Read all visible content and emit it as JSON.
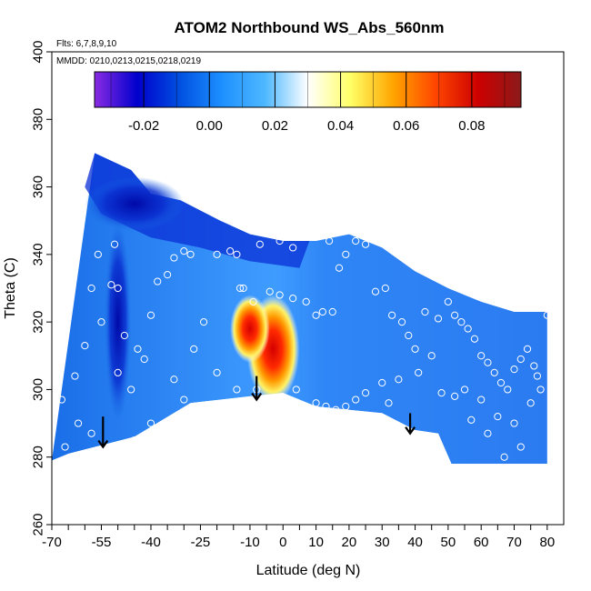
{
  "chart_data": {
    "type": "heatmap",
    "title": "ATOM2 Northbound WS_Abs_560nm",
    "notes": [
      "Flts: 6,7,8,9,10",
      "MMDD: 0210,0213,0215,0218,0219"
    ],
    "xlabel": "Latitude (deg N)",
    "ylabel": "Theta (C)",
    "xlim": [
      -70,
      85
    ],
    "ylim": [
      260,
      400
    ],
    "x_ticks": [
      -70,
      -55,
      -40,
      -25,
      -10,
      0,
      10,
      20,
      30,
      40,
      50,
      60,
      70,
      80
    ],
    "x_tick_labels": [
      "-70",
      "-55",
      "-40",
      "-25",
      "-10",
      "0",
      "10",
      "20",
      "30",
      "40",
      "50",
      "60",
      "70",
      "80"
    ],
    "x_minor_ticks": [
      -65,
      -60,
      -50,
      -45,
      -35,
      -30,
      -20,
      -15,
      -5,
      5,
      15,
      25,
      35,
      45,
      55,
      65,
      75
    ],
    "y_ticks": [
      260,
      280,
      300,
      320,
      340,
      360,
      380,
      400
    ],
    "y_tick_labels": [
      "260",
      "280",
      "300",
      "320",
      "340",
      "360",
      "380",
      "400"
    ],
    "colorbar": {
      "range": [
        -0.035,
        0.095
      ],
      "ticks": [
        -0.02,
        0.0,
        0.02,
        0.04,
        0.06,
        0.08
      ],
      "tick_labels": [
        "-0.02",
        "0.00",
        "0.02",
        "0.04",
        "0.06",
        "0.08"
      ],
      "colors": [
        "#8a2be2",
        "#0000cd",
        "#0050e0",
        "#1e90ff",
        "#4db8ff",
        "#ffffff",
        "#ffff66",
        "#ffa500",
        "#ff4500",
        "#cc0000",
        "#8b1a1a"
      ]
    },
    "colors": {
      "background_field": "#2b7bf0",
      "hot_core": "#d40000",
      "cold_streak": "#0010b0"
    },
    "domain_top": [
      [
        -57,
        370
      ],
      [
        -46,
        365
      ],
      [
        -40,
        358
      ],
      [
        -31,
        356
      ],
      [
        -19,
        350
      ],
      [
        -10,
        346
      ],
      [
        0,
        344
      ],
      [
        10,
        344
      ],
      [
        20,
        346
      ],
      [
        30,
        342
      ],
      [
        40,
        335
      ],
      [
        50,
        330
      ],
      [
        60,
        326
      ],
      [
        70,
        323
      ],
      [
        80,
        323
      ]
    ],
    "domain_bottom": [
      [
        -60,
        296
      ],
      [
        -61,
        284
      ],
      [
        -66,
        280
      ],
      [
        -70,
        279
      ]
    ],
    "terrain_boundary": [
      [
        -70,
        278
      ],
      [
        -65,
        281
      ],
      [
        -45,
        286
      ],
      [
        -28,
        296
      ],
      [
        -10,
        298
      ],
      [
        0,
        299
      ],
      [
        10,
        295
      ],
      [
        20,
        294
      ],
      [
        30,
        293
      ],
      [
        40,
        288
      ],
      [
        47,
        287
      ],
      [
        51,
        278
      ],
      [
        80,
        278
      ]
    ],
    "features": [
      {
        "label": "",
        "center": [
          -3,
          312
        ],
        "radius_x": 8,
        "radius_y": 16,
        "value": 0.09
      },
      {
        "label": "",
        "center": [
          -10,
          318
        ],
        "radius_x": 6,
        "radius_y": 10,
        "value": 0.06
      },
      {
        "label": "",
        "center": [
          -50,
          320
        ],
        "radius_x": 4,
        "radius_y": 30,
        "value": -0.025
      },
      {
        "label": "",
        "center": [
          -45,
          355
        ],
        "radius_x": 15,
        "radius_y": 8,
        "value": -0.02
      }
    ],
    "arrows": [
      {
        "x": -54.5,
        "y_from": 292,
        "y_to": 283
      },
      {
        "x": -8,
        "y_from": 304,
        "y_to": 297
      },
      {
        "x": 38.5,
        "y_from": 293,
        "y_to": 287
      }
    ],
    "sample_points": [
      [
        -67,
        342
      ],
      [
        -68,
        337
      ],
      [
        -66,
        320
      ],
      [
        -69,
        308
      ],
      [
        -67,
        297
      ],
      [
        -66,
        283
      ],
      [
        -68,
        278
      ],
      [
        -63,
        304
      ],
      [
        -60,
        313
      ],
      [
        -58,
        330
      ],
      [
        -56,
        340
      ],
      [
        -55,
        320
      ],
      [
        -52,
        331
      ],
      [
        -50,
        330
      ],
      [
        -51,
        343
      ],
      [
        -48,
        316
      ],
      [
        -44,
        312
      ],
      [
        -42,
        309
      ],
      [
        -40,
        322
      ],
      [
        -38,
        332
      ],
      [
        -35,
        334
      ],
      [
        -33,
        339
      ],
      [
        -30,
        341
      ],
      [
        -28,
        340
      ],
      [
        -24,
        320
      ],
      [
        -20,
        340
      ],
      [
        -16,
        341
      ],
      [
        -14,
        340
      ],
      [
        -13,
        330
      ],
      [
        -12,
        330
      ],
      [
        -7,
        343
      ],
      [
        -5,
        347
      ],
      [
        -3,
        347
      ],
      [
        -1,
        344
      ],
      [
        3,
        342
      ],
      [
        -9,
        326
      ],
      [
        -4,
        329
      ],
      [
        -1,
        328
      ],
      [
        3,
        327
      ],
      [
        7,
        326
      ],
      [
        10,
        322
      ],
      [
        12,
        323
      ],
      [
        15,
        323
      ],
      [
        -8,
        300
      ],
      [
        4,
        300
      ],
      [
        10,
        296
      ],
      [
        13,
        295
      ],
      [
        14,
        344
      ],
      [
        17,
        336
      ],
      [
        19,
        340
      ],
      [
        22,
        344
      ],
      [
        25,
        343
      ],
      [
        28,
        329
      ],
      [
        31,
        330
      ],
      [
        33,
        322
      ],
      [
        36,
        320
      ],
      [
        38,
        316
      ],
      [
        40,
        312
      ],
      [
        43,
        323
      ],
      [
        47,
        321
      ],
      [
        50,
        326
      ],
      [
        52,
        322
      ],
      [
        54,
        320
      ],
      [
        56,
        318
      ],
      [
        58,
        315
      ],
      [
        60,
        310
      ],
      [
        62,
        308
      ],
      [
        64,
        305
      ],
      [
        66,
        302
      ],
      [
        68,
        300
      ],
      [
        70,
        306
      ],
      [
        72,
        309
      ],
      [
        74,
        312
      ],
      [
        76,
        307
      ],
      [
        77,
        304
      ],
      [
        78,
        300
      ],
      [
        80,
        322
      ],
      [
        55,
        300
      ],
      [
        60,
        297
      ],
      [
        65,
        292
      ],
      [
        70,
        290
      ],
      [
        75,
        296
      ],
      [
        45,
        310
      ],
      [
        41,
        305
      ],
      [
        35,
        303
      ],
      [
        30,
        302
      ],
      [
        25,
        299
      ],
      [
        22,
        297
      ],
      [
        19,
        295
      ],
      [
        16,
        294
      ],
      [
        12,
        293
      ],
      [
        32,
        296
      ],
      [
        48,
        299
      ],
      [
        52,
        298
      ],
      [
        57,
        291
      ],
      [
        62,
        287
      ],
      [
        67,
        280
      ],
      [
        72,
        283
      ],
      [
        -62,
        290
      ],
      [
        -58,
        287
      ],
      [
        -50,
        305
      ],
      [
        -46,
        300
      ],
      [
        -40,
        290
      ],
      [
        -33,
        303
      ],
      [
        -27,
        312
      ],
      [
        -20,
        305
      ],
      [
        -14,
        300
      ],
      [
        -30,
        297
      ],
      [
        -25,
        293
      ],
      [
        -45,
        285
      ]
    ]
  }
}
